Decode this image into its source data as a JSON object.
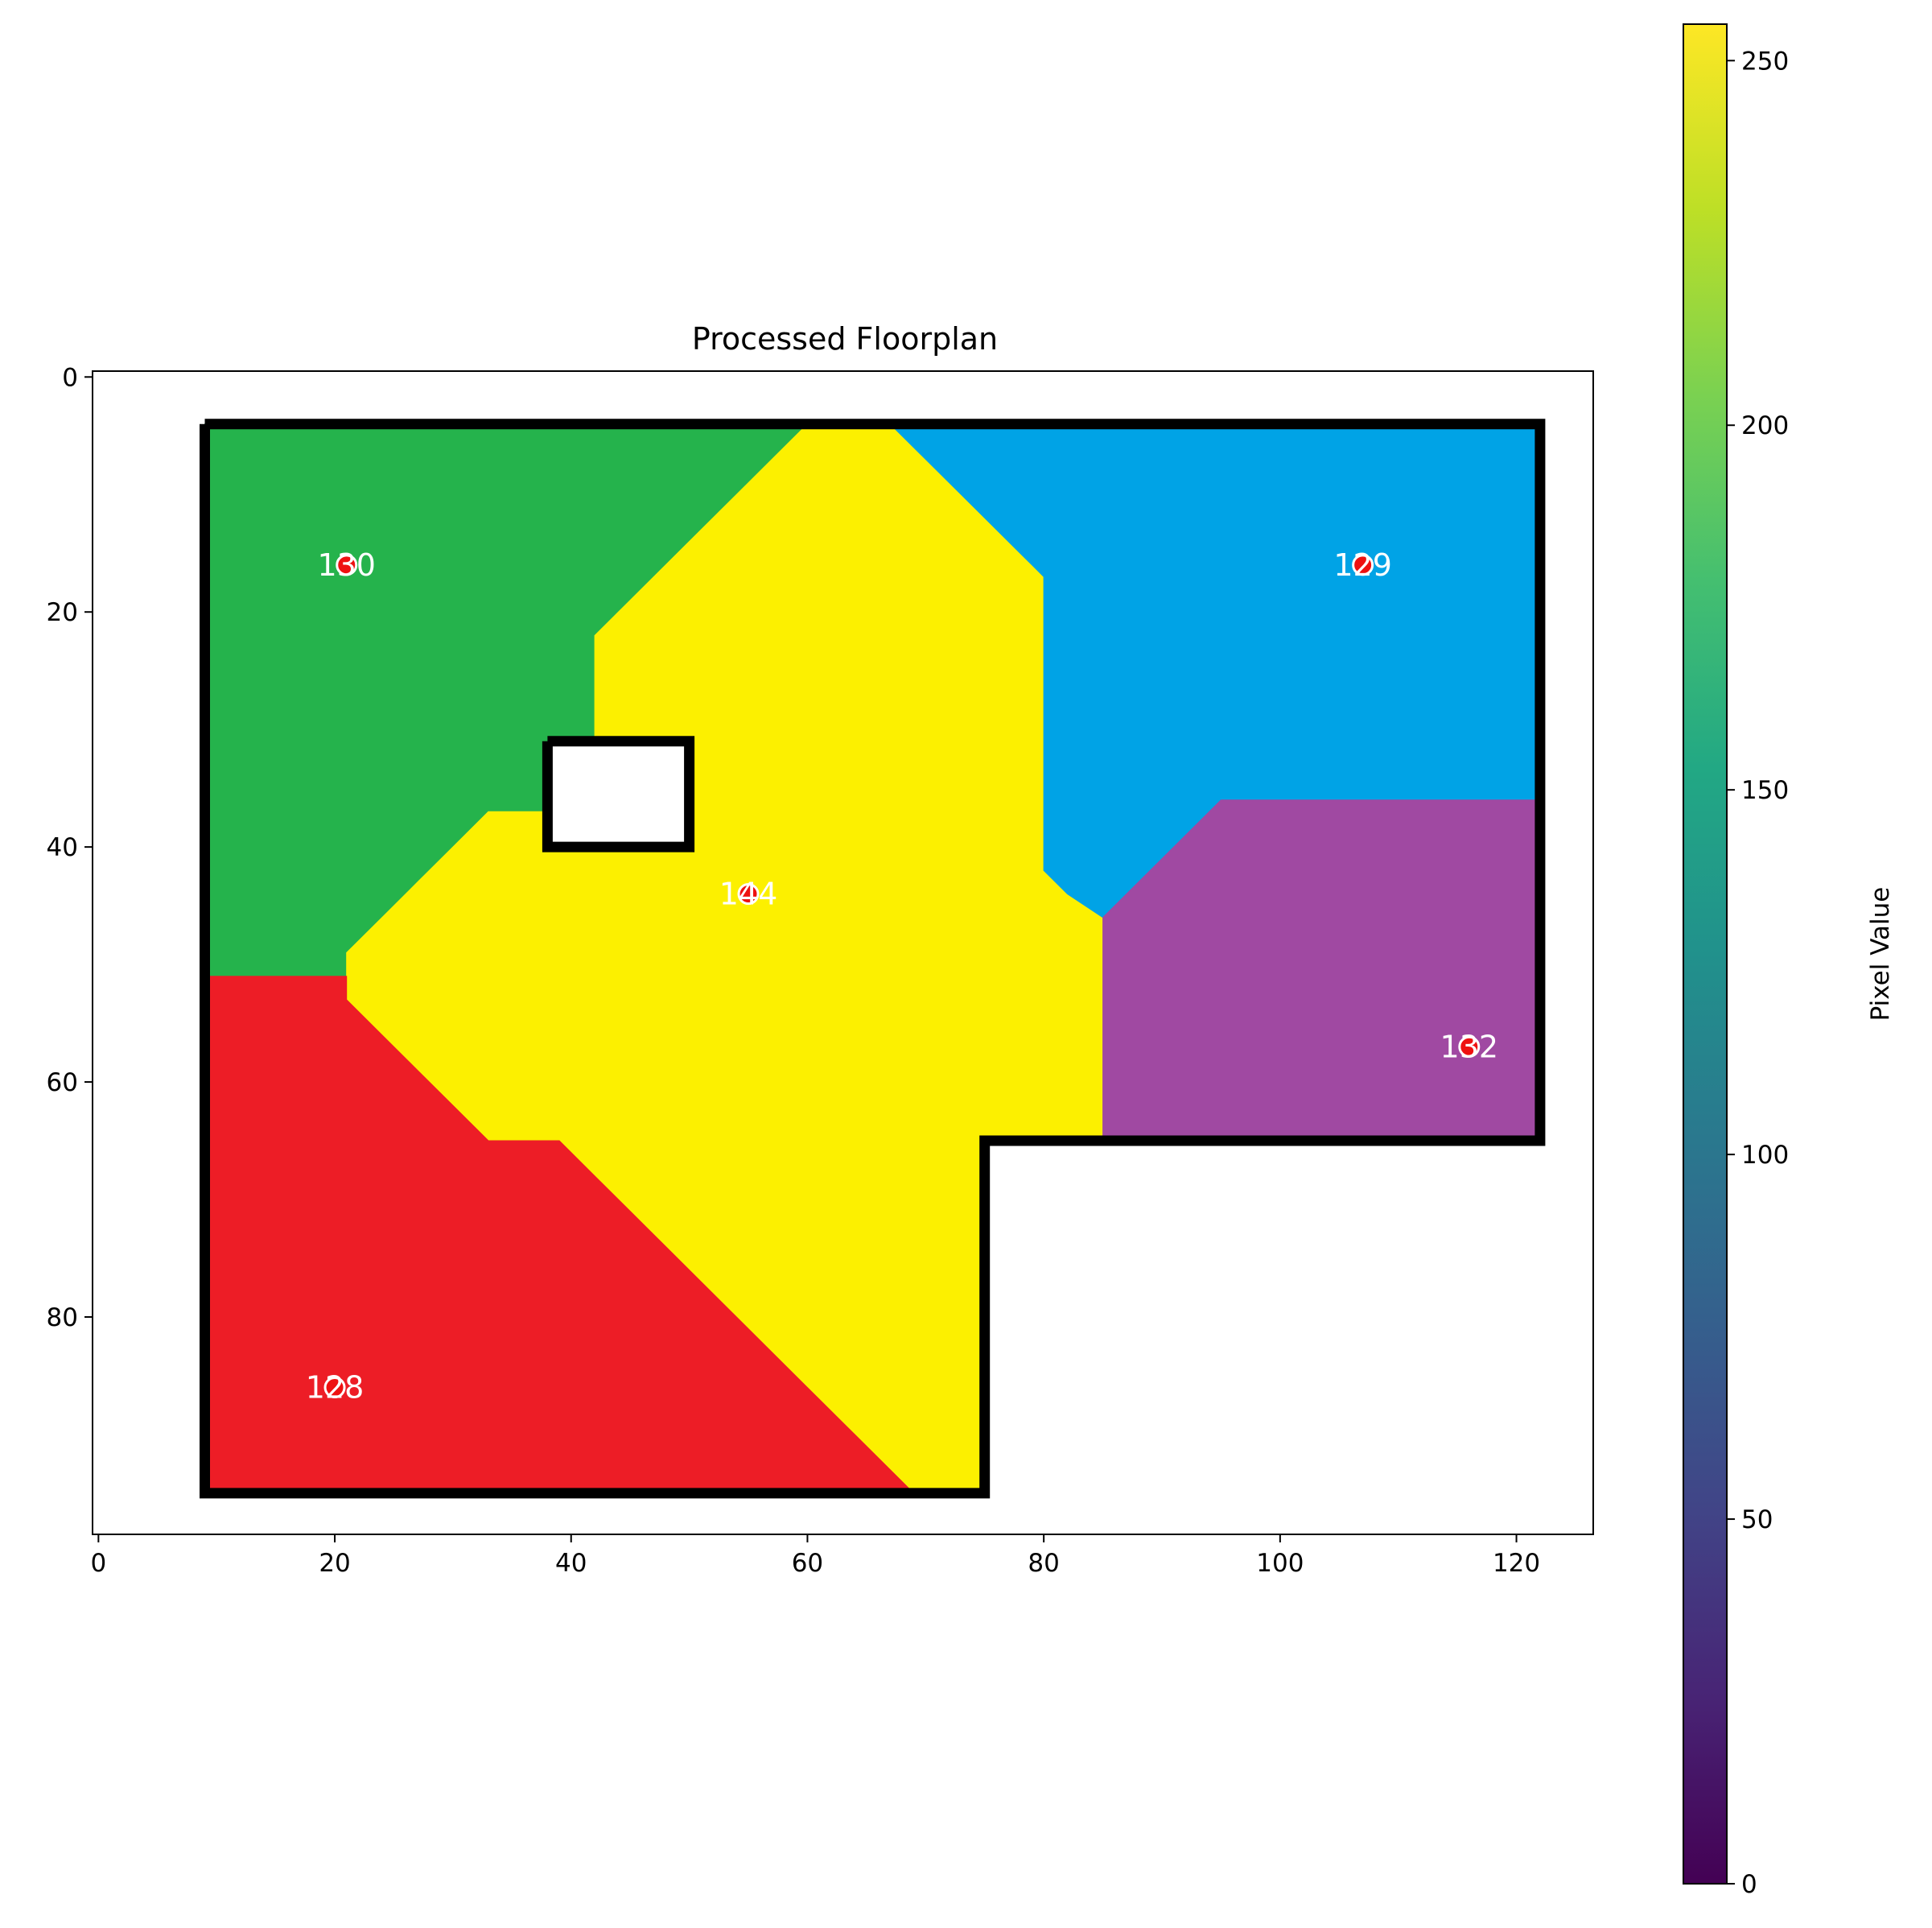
{
  "chart_data": {
    "type": "heatmap",
    "title": "Processed Floorplan",
    "xlim": [
      -0.5,
      126.5
    ],
    "ylim": [
      98.5,
      -0.5
    ],
    "x_ticks": [
      0,
      20,
      40,
      60,
      80,
      100,
      120
    ],
    "y_ticks": [
      0,
      20,
      40,
      60,
      80
    ],
    "colorbar": {
      "label": "Pixel Value",
      "range": [
        0,
        255
      ],
      "ticks": [
        0,
        50,
        100,
        150,
        200,
        250
      ],
      "colormap": "viridis"
    },
    "colors": {
      "room_green": "#25b34c",
      "room_yellow": "#fcf000",
      "room_blue": "#00a3e6",
      "room_purple": "#a049a2",
      "room_red": "#ed1d26",
      "wall": "#000000",
      "marker": "#ee1111"
    },
    "rooms": [
      {
        "label": "130",
        "color": "#25b34c",
        "x": 21,
        "y": 16,
        "polygon": [
          [
            9,
            4
          ],
          [
            60,
            4
          ],
          [
            57,
            7
          ],
          [
            54,
            10
          ],
          [
            51,
            13
          ],
          [
            48,
            16
          ],
          [
            45,
            19
          ],
          [
            42,
            22
          ],
          [
            42,
            31
          ],
          [
            38,
            31
          ],
          [
            38,
            37
          ],
          [
            33,
            37
          ],
          [
            30,
            40
          ],
          [
            27,
            43
          ],
          [
            24,
            46
          ],
          [
            21,
            49
          ],
          [
            21,
            51
          ],
          [
            9,
            51
          ]
        ]
      },
      {
        "label": "144",
        "color": "#fcf000",
        "x": 55,
        "y": 44,
        "polygon": [
          [
            60,
            4
          ],
          [
            67,
            4
          ],
          [
            70,
            7
          ],
          [
            73,
            10
          ],
          [
            76,
            13
          ],
          [
            79,
            16
          ],
          [
            80,
            17
          ],
          [
            80,
            42
          ],
          [
            82,
            44
          ],
          [
            85,
            46
          ],
          [
            85,
            65
          ],
          [
            75,
            65
          ],
          [
            75,
            95
          ],
          [
            69,
            95
          ],
          [
            66,
            92
          ],
          [
            63,
            89
          ],
          [
            60,
            86
          ],
          [
            57,
            83
          ],
          [
            54,
            80
          ],
          [
            51,
            77
          ],
          [
            48,
            74
          ],
          [
            45,
            71
          ],
          [
            42,
            68
          ],
          [
            39,
            65
          ],
          [
            33,
            65
          ],
          [
            30,
            62
          ],
          [
            27,
            59
          ],
          [
            24,
            56
          ],
          [
            21,
            53
          ],
          [
            21,
            49
          ],
          [
            24,
            46
          ],
          [
            27,
            43
          ],
          [
            30,
            40
          ],
          [
            33,
            37
          ],
          [
            38,
            37
          ],
          [
            38,
            40
          ],
          [
            50,
            40
          ],
          [
            50,
            31
          ],
          [
            42,
            31
          ],
          [
            42,
            22
          ],
          [
            45,
            19
          ],
          [
            48,
            16
          ],
          [
            51,
            13
          ],
          [
            54,
            10
          ],
          [
            57,
            7
          ]
        ]
      },
      {
        "label": "129",
        "color": "#00a3e6",
        "x": 107,
        "y": 16,
        "polygon": [
          [
            67,
            4
          ],
          [
            122,
            4
          ],
          [
            122,
            36
          ],
          [
            95,
            36
          ],
          [
            92,
            39
          ],
          [
            89,
            42
          ],
          [
            86,
            45
          ],
          [
            85,
            46
          ],
          [
            82,
            44
          ],
          [
            80,
            42
          ],
          [
            80,
            17
          ],
          [
            79,
            16
          ],
          [
            76,
            13
          ],
          [
            73,
            10
          ],
          [
            70,
            7
          ]
        ]
      },
      {
        "label": "132",
        "color": "#a049a2",
        "x": 116,
        "y": 57,
        "polygon": [
          [
            95,
            36
          ],
          [
            122,
            36
          ],
          [
            122,
            65
          ],
          [
            85,
            65
          ],
          [
            85,
            46
          ],
          [
            86,
            45
          ],
          [
            89,
            42
          ],
          [
            92,
            39
          ]
        ]
      },
      {
        "label": "128",
        "color": "#ed1d26",
        "x": 20,
        "y": 86,
        "polygon": [
          [
            9,
            51
          ],
          [
            21,
            51
          ],
          [
            21,
            53
          ],
          [
            24,
            56
          ],
          [
            27,
            59
          ],
          [
            30,
            62
          ],
          [
            33,
            65
          ],
          [
            39,
            65
          ],
          [
            42,
            68
          ],
          [
            45,
            71
          ],
          [
            48,
            74
          ],
          [
            51,
            77
          ],
          [
            54,
            80
          ],
          [
            57,
            83
          ],
          [
            60,
            86
          ],
          [
            63,
            89
          ],
          [
            66,
            92
          ],
          [
            69,
            95
          ],
          [
            9,
            95
          ]
        ]
      }
    ],
    "walls": [
      [
        [
          9,
          4
        ],
        [
          122,
          4
        ],
        [
          122,
          65
        ],
        [
          75,
          65
        ],
        [
          75,
          95
        ],
        [
          9,
          95
        ],
        [
          9,
          4
        ]
      ],
      [
        [
          38,
          31
        ],
        [
          50,
          31
        ],
        [
          50,
          40
        ],
        [
          38,
          40
        ],
        [
          38,
          31
        ]
      ]
    ],
    "wall_blank_fill": "#ffffff"
  }
}
